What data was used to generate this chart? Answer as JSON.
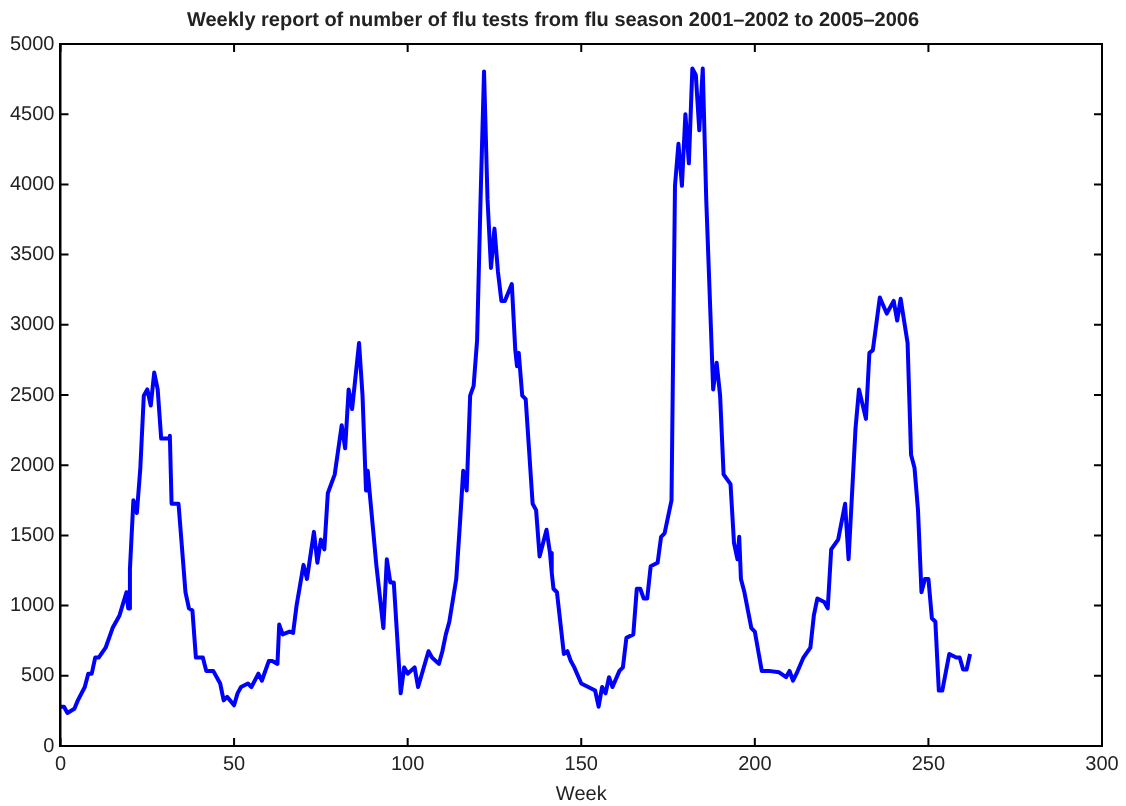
{
  "chart_data": {
    "type": "line",
    "title": "Weekly report of number of flu tests from flu season 2001–2002 to 2005–2006",
    "xlabel": "Week",
    "x": [
      0,
      1,
      2,
      4,
      5,
      7,
      8,
      9,
      10,
      11,
      13,
      15,
      17,
      19,
      19.5,
      20,
      21,
      22,
      23,
      24,
      25,
      26,
      27,
      28,
      29,
      31,
      31.5,
      32,
      33,
      34,
      36,
      37,
      38,
      39,
      41,
      42,
      44,
      46,
      47,
      48,
      50,
      51,
      52,
      54,
      55,
      57,
      58,
      60,
      61,
      62.5,
      63,
      64,
      66,
      67,
      68,
      70,
      71,
      73,
      74,
      75,
      76,
      77,
      79,
      81,
      82,
      83,
      84,
      86,
      87,
      88,
      88.5,
      89,
      91,
      93,
      94,
      95,
      96,
      98,
      99,
      100,
      102,
      103,
      106,
      107,
      109,
      110,
      111,
      112,
      114,
      115,
      116,
      117,
      118,
      119,
      120,
      121,
      122,
      123,
      124,
      125,
      126,
      127,
      128,
      130,
      131,
      131.5,
      132,
      133,
      134,
      136,
      137,
      138,
      140,
      141,
      141.5,
      142,
      143,
      145,
      146,
      147,
      148,
      150,
      152,
      154,
      155,
      156,
      157,
      158,
      159,
      161,
      162,
      163,
      165,
      166,
      167,
      168,
      169,
      170,
      172,
      173,
      174,
      176,
      177,
      178,
      179,
      180,
      181,
      182,
      183,
      184,
      185,
      186,
      188,
      189,
      190,
      191,
      193,
      194,
      195,
      195.5,
      196,
      197,
      199,
      200,
      201,
      202,
      204,
      207,
      209,
      210,
      211,
      212,
      214,
      216,
      217,
      218,
      220,
      221,
      222,
      224,
      226,
      227,
      229,
      230,
      232,
      233,
      234,
      236,
      238,
      240,
      241,
      242,
      244,
      245,
      246,
      247,
      248,
      249,
      250,
      251,
      252,
      253,
      254,
      256,
      258,
      259,
      260,
      261,
      262
    ],
    "values": [
      280,
      280,
      235,
      265,
      325,
      420,
      515,
      515,
      630,
      630,
      700,
      840,
      930,
      1095,
      980,
      1260,
      1750,
      1660,
      1980,
      2495,
      2540,
      2425,
      2660,
      2540,
      2190,
      2190,
      2210,
      1725,
      1725,
      1725,
      1095,
      980,
      965,
      630,
      630,
      535,
      535,
      445,
      325,
      350,
      290,
      375,
      420,
      445,
      420,
      515,
      465,
      605,
      605,
      585,
      865,
      795,
      815,
      805,
      1000,
      1290,
      1190,
      1525,
      1305,
      1470,
      1400,
      1800,
      1935,
      2285,
      2120,
      2540,
      2400,
      2870,
      2495,
      1820,
      1960,
      1820,
      1285,
      840,
      1330,
      1165,
      1165,
      375,
      560,
      515,
      560,
      420,
      675,
      630,
      585,
      675,
      795,
      885,
      1190,
      1560,
      1960,
      1820,
      2495,
      2565,
      2890,
      3895,
      4805,
      3895,
      3405,
      3685,
      3380,
      3170,
      3170,
      3290,
      2820,
      2705,
      2800,
      2495,
      2470,
      1725,
      1680,
      1350,
      1540,
      1375,
      1235,
      1120,
      1095,
      655,
      675,
      605,
      560,
      445,
      420,
      395,
      280,
      420,
      375,
      490,
      420,
      535,
      560,
      770,
      795,
      1120,
      1120,
      1050,
      1050,
      1280,
      1305,
      1490,
      1515,
      1750,
      3990,
      4290,
      3990,
      4500,
      4150,
      4825,
      4780,
      4385,
      4825,
      3895,
      2540,
      2730,
      2495,
      1935,
      1865,
      1445,
      1330,
      1490,
      1190,
      1095,
      840,
      815,
      675,
      535,
      535,
      525,
      490,
      535,
      465,
      515,
      630,
      700,
      930,
      1050,
      1025,
      980,
      1400,
      1470,
      1725,
      1330,
      2260,
      2540,
      2330,
      2800,
      2820,
      3195,
      3080,
      3170,
      3030,
      3185,
      2870,
      2075,
      1980,
      1680,
      1095,
      1190,
      1190,
      910,
      885,
      395,
      395,
      655,
      630,
      630,
      545,
      545,
      655
    ],
    "color": "#0000ff",
    "xlim": [
      0,
      300
    ],
    "xticks": [
      0,
      50,
      100,
      150,
      200,
      250,
      300
    ],
    "ylim": [
      0,
      5000
    ],
    "yticks": [
      0,
      500,
      1000,
      1500,
      2000,
      2500,
      3000,
      3500,
      4000,
      4500,
      5000
    ],
    "grid": false,
    "legend": false,
    "marker": "none",
    "line_style": "solid"
  }
}
